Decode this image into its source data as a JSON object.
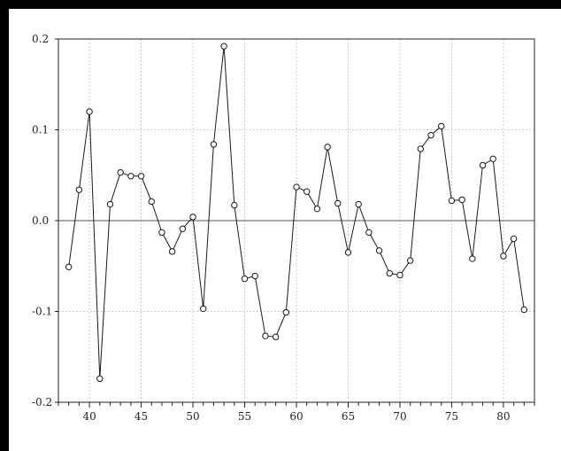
{
  "chart_data": {
    "type": "line",
    "title": "",
    "xlabel": "",
    "ylabel": "",
    "xlim": [
      37,
      83
    ],
    "ylim": [
      -0.2,
      0.2
    ],
    "grid": true,
    "marker": "circle",
    "colors": {
      "line": "#1a1a1a",
      "grid": "#bdbdbd",
      "zero_line": "#555555",
      "frame": "#000000"
    },
    "y_ticks": [
      {
        "value": 0.2,
        "label": "0.2"
      },
      {
        "value": 0.1,
        "label": "0.1"
      },
      {
        "value": 0.0,
        "label": "0.0"
      },
      {
        "value": -0.1,
        "label": "-0.1"
      },
      {
        "value": -0.2,
        "label": "-0.2"
      }
    ],
    "x_ticks": [
      {
        "value": 40,
        "label": "40"
      },
      {
        "value": 45,
        "label": "45"
      },
      {
        "value": 50,
        "label": "50"
      },
      {
        "value": 55,
        "label": "55"
      },
      {
        "value": 60,
        "label": "60"
      },
      {
        "value": 65,
        "label": "65"
      },
      {
        "value": 70,
        "label": "70"
      },
      {
        "value": 75,
        "label": "75"
      },
      {
        "value": 80,
        "label": "80"
      }
    ],
    "x": [
      38,
      39,
      40,
      41,
      42,
      43,
      44,
      45,
      46,
      47,
      48,
      49,
      50,
      51,
      52,
      53,
      54,
      55,
      56,
      57,
      58,
      59,
      60,
      61,
      62,
      63,
      64,
      65,
      66,
      67,
      68,
      69,
      70,
      71,
      72,
      73,
      74,
      75,
      76,
      77,
      78,
      79,
      80,
      81,
      82
    ],
    "values": [
      -0.051,
      0.034,
      0.12,
      -0.174,
      0.018,
      0.053,
      0.049,
      0.049,
      0.021,
      -0.013,
      -0.034,
      -0.009,
      0.004,
      -0.097,
      0.084,
      0.192,
      0.017,
      -0.064,
      -0.061,
      -0.127,
      -0.128,
      -0.101,
      0.037,
      0.032,
      0.013,
      0.081,
      0.019,
      -0.035,
      0.018,
      -0.013,
      -0.033,
      -0.058,
      -0.06,
      -0.044,
      0.079,
      0.094,
      0.104,
      0.022,
      0.023,
      -0.042,
      0.061,
      0.068,
      -0.039,
      -0.02,
      -0.098
    ]
  }
}
